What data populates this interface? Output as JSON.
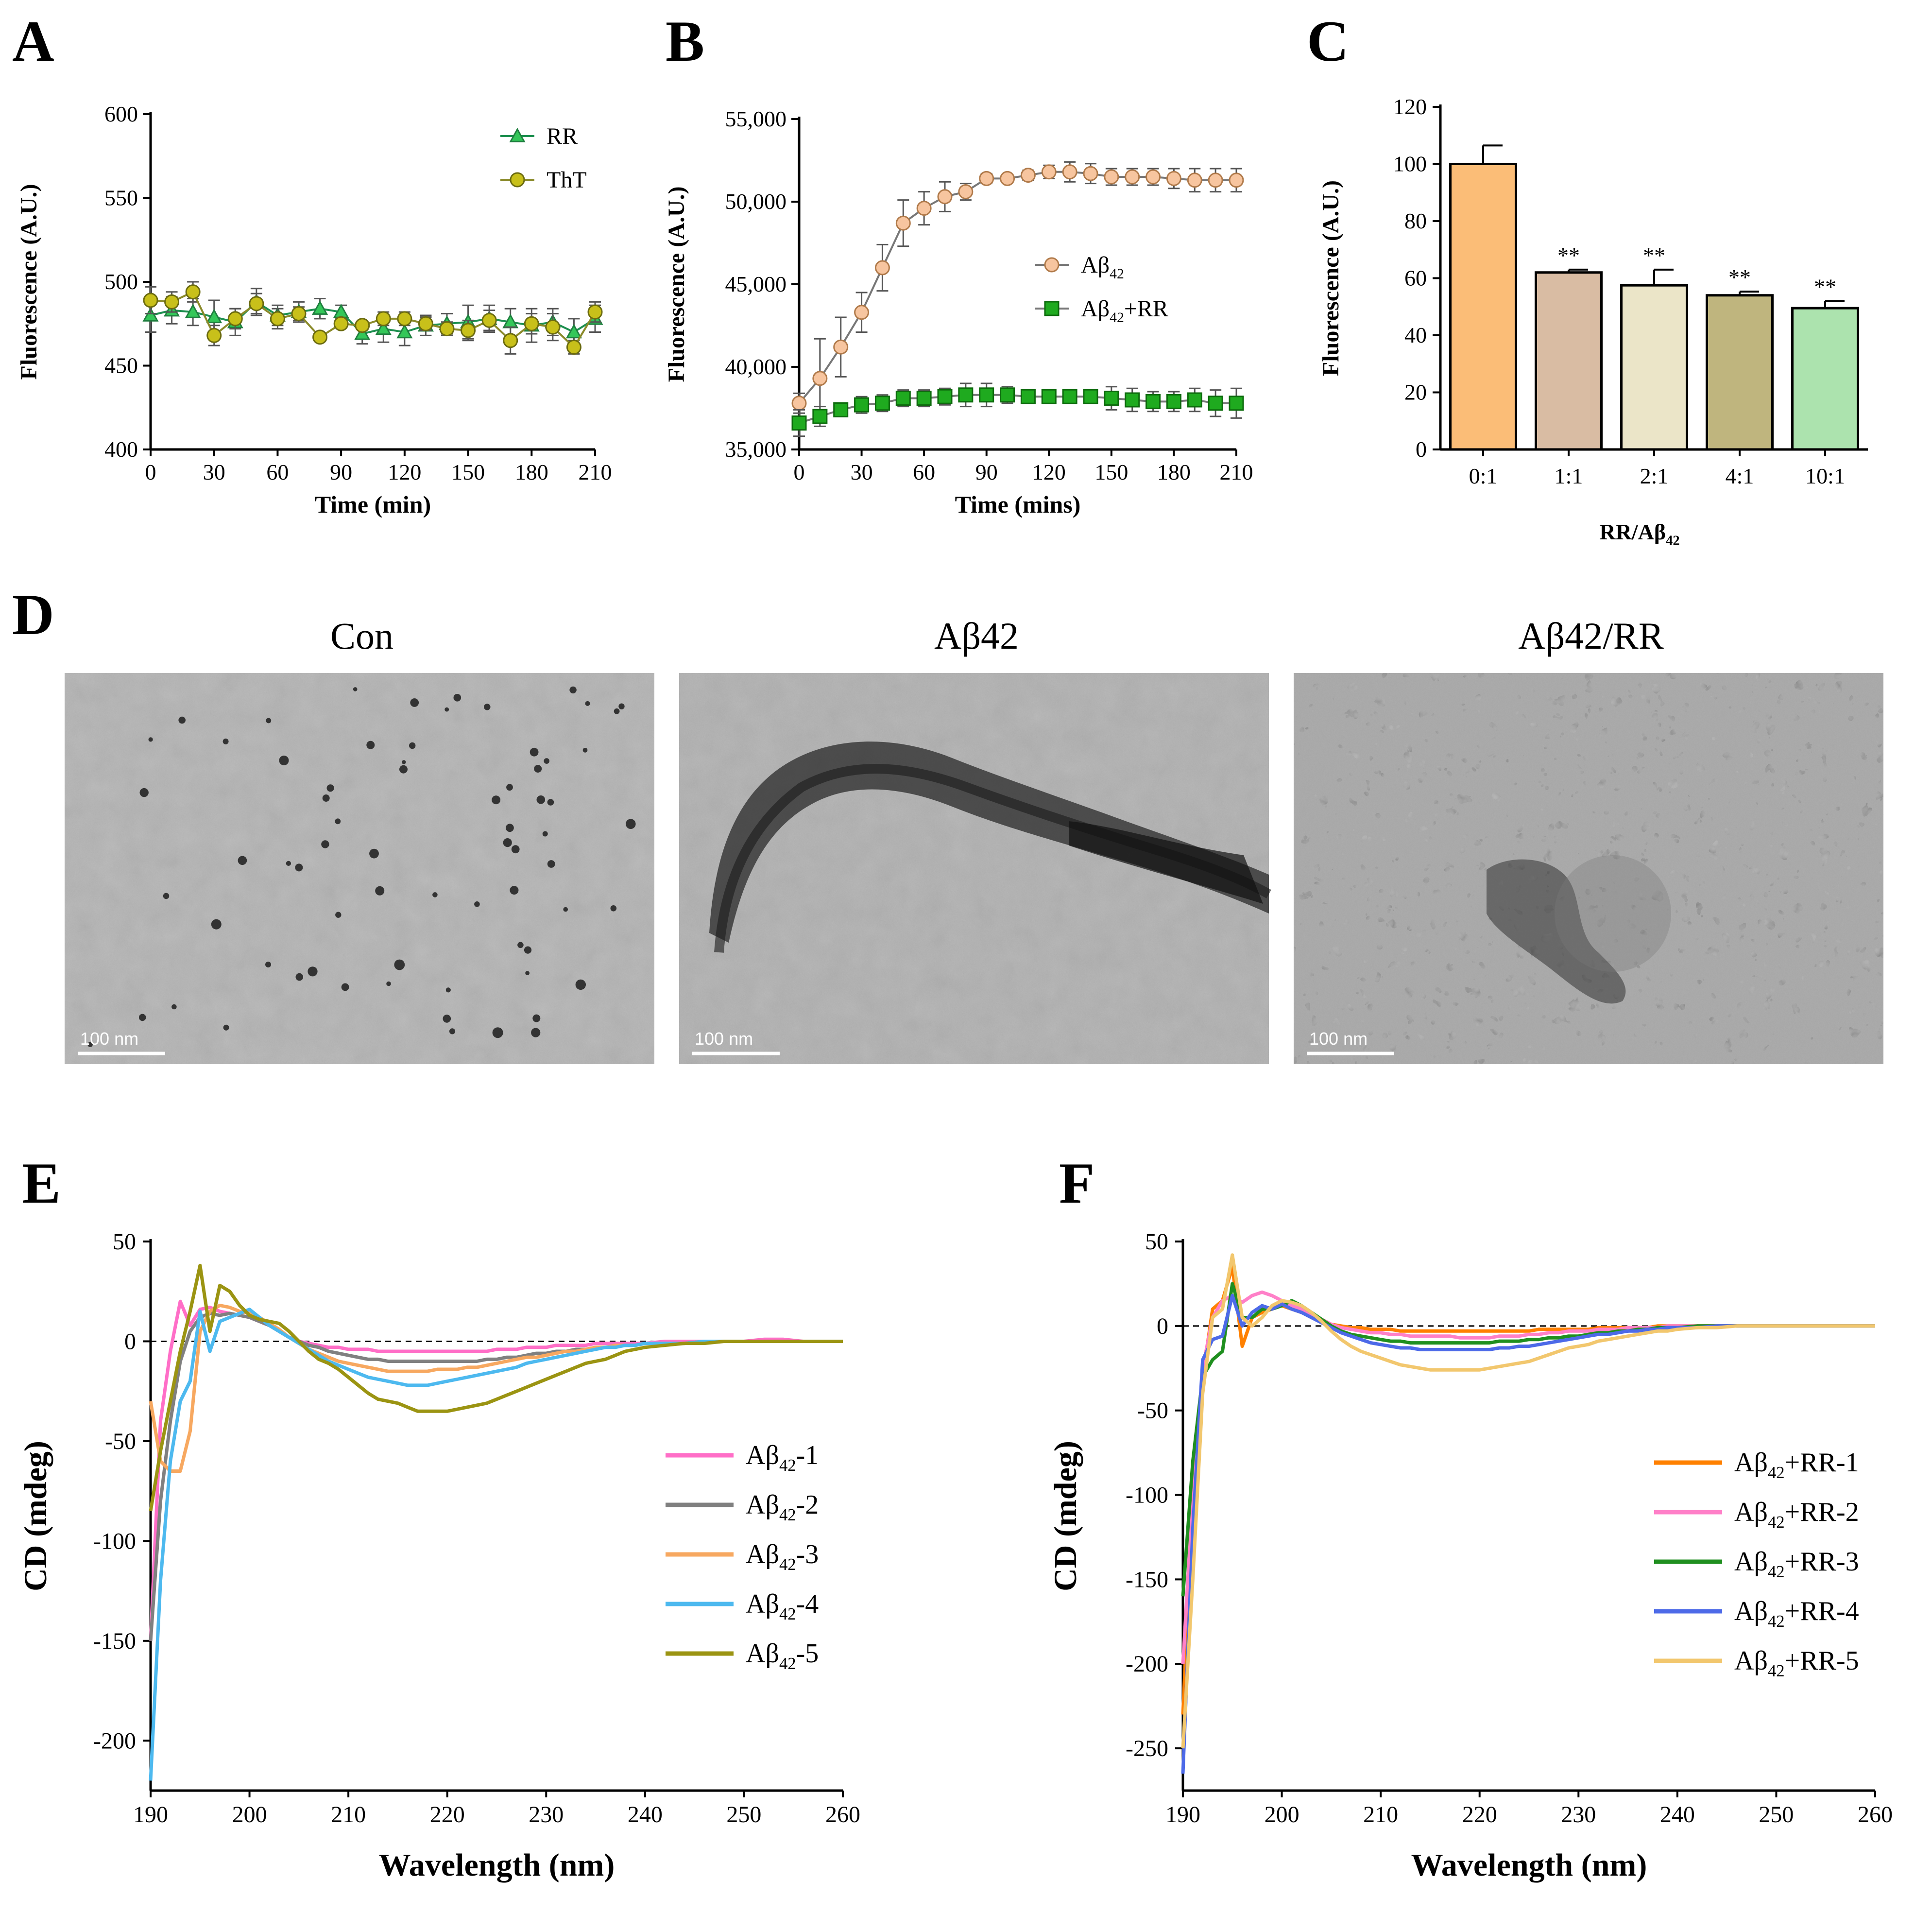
{
  "panels": {
    "A": "A",
    "B": "B",
    "C": "C",
    "D": "D",
    "E": "E",
    "F": "F"
  },
  "micrographs": [
    {
      "title": "Con",
      "scale_bar": "100 nm"
    },
    {
      "title": "Aβ42",
      "scale_bar": "100 nm"
    },
    {
      "title": "Aβ42/RR",
      "scale_bar": "100 nm"
    }
  ],
  "colors": {
    "rr_green": "#34c759",
    "tht_olive": "#c8c01a",
    "abeta_orange": "#f7c59f",
    "abetarr_green": "#1faa1f",
    "bar_0_1": "#fbbd77",
    "bar_1_1": "#d9bca3",
    "bar_2_1": "#ebe5c8",
    "bar_4_1": "#bfb57e",
    "bar_10_1": "#ace3ae",
    "cd_1": "#ff6ec7",
    "cd_2": "#808080",
    "cd_3": "#f7a860",
    "cd_4": "#4db9ef",
    "cd_5": "#9b9412",
    "rr_1": "#ff8000",
    "rr_2": "#ff80c8",
    "rr_3": "#1f8f1f",
    "rr_4": "#4d6ae8",
    "rr_5": "#f2c76e"
  },
  "chart_data": [
    {
      "panel": "A",
      "type": "line",
      "xlabel": "Time (min)",
      "ylabel": "Fluorescence (A.U.)",
      "xlim": [
        0,
        210
      ],
      "ylim": [
        400,
        600
      ],
      "xticks": [
        0,
        30,
        60,
        90,
        120,
        150,
        180,
        210
      ],
      "yticks": [
        400,
        450,
        500,
        550,
        600
      ],
      "x": [
        0,
        10,
        20,
        30,
        40,
        50,
        60,
        70,
        80,
        90,
        100,
        110,
        120,
        130,
        140,
        150,
        160,
        170,
        180,
        190,
        200,
        210
      ],
      "series": [
        {
          "name": "RR",
          "marker": "triangle",
          "values": [
            480,
            483,
            482,
            479,
            476,
            488,
            480,
            482,
            484,
            482,
            469,
            472,
            470,
            474,
            475,
            476,
            478,
            476,
            474,
            476,
            470,
            478
          ],
          "errors": [
            10,
            8,
            8,
            10,
            8,
            8,
            6,
            6,
            6,
            4,
            6,
            8,
            8,
            6,
            6,
            10,
            8,
            8,
            10,
            8,
            8,
            8
          ]
        },
        {
          "name": "ThT",
          "marker": "circle",
          "values": [
            489,
            488,
            494,
            468,
            478,
            487,
            478,
            481,
            467,
            475,
            474,
            478,
            478,
            475,
            472,
            471,
            477,
            465,
            475,
            473,
            461,
            482
          ],
          "errors": [
            8,
            6,
            6,
            6,
            6,
            6,
            6,
            4,
            2,
            2,
            2,
            4,
            4,
            4,
            4,
            6,
            6,
            8,
            6,
            8,
            4,
            6
          ]
        }
      ]
    },
    {
      "panel": "B",
      "type": "line",
      "xlabel": "Time (mins)",
      "ylabel": "Fluorescence (A.U.)",
      "xlim": [
        0,
        210
      ],
      "ylim": [
        35000,
        55000
      ],
      "xticks": [
        0,
        30,
        60,
        90,
        120,
        150,
        180,
        210
      ],
      "yticks": [
        35000,
        40000,
        45000,
        50000,
        55000
      ],
      "ytick_labels": [
        "35,000",
        "40,000",
        "45,000",
        "50,000",
        "55,000"
      ],
      "x": [
        0,
        10,
        20,
        30,
        40,
        50,
        60,
        70,
        80,
        90,
        100,
        110,
        120,
        130,
        140,
        150,
        160,
        170,
        180,
        190,
        200,
        210
      ],
      "series": [
        {
          "name": "Aβ42",
          "marker": "circle",
          "values": [
            37800,
            39300,
            41200,
            43300,
            46000,
            48700,
            49600,
            50300,
            50600,
            51400,
            51400,
            51600,
            51800,
            51800,
            51700,
            51500,
            51500,
            51500,
            51400,
            51300,
            51300,
            51300
          ],
          "errors": [
            600,
            2400,
            1800,
            1200,
            1400,
            1400,
            1000,
            900,
            500,
            300,
            200,
            300,
            400,
            600,
            600,
            500,
            500,
            500,
            600,
            700,
            700,
            700
          ]
        },
        {
          "name": "Aβ42+RR",
          "marker": "square",
          "values": [
            36600,
            37000,
            37400,
            37700,
            37800,
            38100,
            38100,
            38200,
            38300,
            38300,
            38300,
            38200,
            38200,
            38200,
            38200,
            38100,
            38000,
            37900,
            37900,
            38000,
            37800,
            37800
          ],
          "errors": [
            800,
            600,
            400,
            500,
            500,
            500,
            500,
            500,
            700,
            700,
            500,
            400,
            300,
            300,
            300,
            700,
            700,
            600,
            600,
            700,
            800,
            900
          ]
        }
      ]
    },
    {
      "panel": "C",
      "type": "bar",
      "xlabel": "RR/Aβ42",
      "ylabel": "Fluorescence (A.U.)",
      "ylim": [
        0,
        120
      ],
      "yticks": [
        0,
        20,
        40,
        60,
        80,
        100,
        120
      ],
      "categories": [
        "0:1",
        "1:1",
        "2:1",
        "4:1",
        "10:1"
      ],
      "values": [
        100,
        62,
        57.5,
        54,
        49.5
      ],
      "errors": [
        6.5,
        1,
        5.5,
        1.3,
        2.5
      ],
      "significance": [
        "",
        "**",
        "**",
        "**",
        "**"
      ]
    },
    {
      "panel": "E",
      "type": "line",
      "xlabel": "Wavelength (nm)",
      "ylabel": "CD (mdeg)",
      "xlim": [
        190,
        260
      ],
      "ylim": [
        -225,
        50
      ],
      "xticks": [
        190,
        200,
        210,
        220,
        230,
        240,
        250,
        260
      ],
      "yticks": [
        -200,
        -150,
        -100,
        -50,
        0,
        50
      ],
      "x": [
        190,
        191,
        192,
        193,
        194,
        195,
        196,
        197,
        198,
        199,
        200,
        201,
        202,
        203,
        204,
        205,
        206,
        207,
        208,
        209,
        210,
        211,
        212,
        213,
        214,
        215,
        216,
        217,
        218,
        219,
        220,
        221,
        222,
        223,
        224,
        225,
        226,
        227,
        228,
        229,
        230,
        231,
        232,
        233,
        234,
        235,
        236,
        237,
        238,
        239,
        240,
        242,
        244,
        246,
        248,
        250,
        252,
        254,
        256,
        258,
        260
      ],
      "series": [
        {
          "name": "Aβ42-1",
          "values": [
            -150,
            -40,
            -5,
            20,
            8,
            16,
            17,
            15,
            14,
            13,
            12,
            10,
            8,
            5,
            2,
            0,
            -1,
            -2,
            -3,
            -3,
            -4,
            -4,
            -4,
            -5,
            -5,
            -5,
            -5,
            -5,
            -5,
            -5,
            -5,
            -5,
            -5,
            -5,
            -5,
            -4,
            -4,
            -4,
            -3,
            -3,
            -3,
            -2,
            -2,
            -2,
            -2,
            -1,
            -1,
            -1,
            -1,
            -1,
            -1,
            0,
            0,
            0,
            0,
            0,
            1,
            1,
            0,
            0,
            0
          ]
        },
        {
          "name": "Aβ42-2",
          "values": [
            -150,
            -80,
            -40,
            -10,
            5,
            12,
            14,
            13,
            14,
            13,
            12,
            10,
            8,
            5,
            2,
            0,
            -2,
            -3,
            -5,
            -6,
            -7,
            -8,
            -9,
            -9,
            -10,
            -10,
            -10,
            -10,
            -10,
            -10,
            -10,
            -10,
            -10,
            -10,
            -9,
            -9,
            -8,
            -8,
            -7,
            -6,
            -6,
            -5,
            -5,
            -4,
            -4,
            -3,
            -3,
            -2,
            -2,
            -2,
            -1,
            -1,
            -1,
            0,
            0,
            0,
            0,
            0,
            0,
            0,
            0
          ]
        },
        {
          "name": "Aβ42-3",
          "values": [
            -30,
            -60,
            -65,
            -65,
            -45,
            5,
            15,
            18,
            17,
            15,
            14,
            12,
            9,
            6,
            2,
            -1,
            -4,
            -6,
            -8,
            -10,
            -11,
            -12,
            -13,
            -14,
            -15,
            -15,
            -15,
            -15,
            -15,
            -14,
            -14,
            -14,
            -13,
            -13,
            -12,
            -11,
            -10,
            -9,
            -8,
            -8,
            -7,
            -6,
            -5,
            -5,
            -4,
            -3,
            -3,
            -2,
            -2,
            -2,
            -1,
            -1,
            -1,
            0,
            0,
            0,
            0,
            0,
            0,
            0,
            0
          ]
        },
        {
          "name": "Aβ42-4",
          "values": [
            -220,
            -120,
            -60,
            -30,
            -20,
            15,
            -5,
            10,
            12,
            14,
            16,
            12,
            8,
            5,
            2,
            -1,
            -4,
            -7,
            -10,
            -12,
            -14,
            -16,
            -18,
            -19,
            -20,
            -21,
            -22,
            -22,
            -22,
            -21,
            -20,
            -19,
            -18,
            -17,
            -16,
            -15,
            -14,
            -13,
            -11,
            -10,
            -9,
            -8,
            -7,
            -6,
            -5,
            -4,
            -3,
            -3,
            -2,
            -2,
            -1,
            -1,
            -1,
            0,
            0,
            0,
            0,
            0,
            0,
            0,
            0
          ]
        },
        {
          "name": "Aβ42-5",
          "values": [
            -85,
            -55,
            -30,
            -5,
            15,
            38,
            5,
            28,
            25,
            18,
            13,
            11,
            10,
            9,
            5,
            0,
            -5,
            -9,
            -11,
            -14,
            -18,
            -22,
            -26,
            -29,
            -30,
            -31,
            -33,
            -35,
            -35,
            -35,
            -35,
            -34,
            -33,
            -32,
            -31,
            -29,
            -27,
            -25,
            -23,
            -21,
            -19,
            -17,
            -15,
            -13,
            -11,
            -10,
            -9,
            -7,
            -5,
            -4,
            -3,
            -2,
            -1,
            -1,
            0,
            0,
            0,
            0,
            0,
            0,
            0
          ]
        }
      ]
    },
    {
      "panel": "F",
      "type": "line",
      "xlabel": "Wavelength (nm)",
      "ylabel": "CD (mdeg)",
      "xlim": [
        190,
        260
      ],
      "ylim": [
        -275,
        50
      ],
      "xticks": [
        190,
        200,
        210,
        220,
        230,
        240,
        250,
        260
      ],
      "yticks": [
        -250,
        -200,
        -150,
        -100,
        -50,
        0,
        50
      ],
      "x": [
        190,
        191,
        192,
        193,
        194,
        195,
        196,
        197,
        198,
        199,
        200,
        201,
        202,
        203,
        204,
        205,
        206,
        207,
        208,
        209,
        210,
        211,
        212,
        213,
        214,
        215,
        216,
        217,
        218,
        219,
        220,
        221,
        222,
        223,
        224,
        225,
        226,
        227,
        228,
        229,
        230,
        231,
        232,
        233,
        234,
        235,
        236,
        237,
        238,
        239,
        240,
        242,
        244,
        246,
        248,
        250,
        252,
        254,
        256,
        258,
        260
      ],
      "series": [
        {
          "name": "Aβ42+RR-1",
          "values": [
            -230,
            -100,
            -30,
            10,
            15,
            35,
            -12,
            5,
            8,
            10,
            12,
            10,
            8,
            6,
            3,
            1,
            0,
            -1,
            -1,
            -2,
            -2,
            -2,
            -3,
            -3,
            -3,
            -3,
            -3,
            -3,
            -3,
            -3,
            -3,
            -3,
            -3,
            -3,
            -3,
            -3,
            -2,
            -2,
            -2,
            -2,
            -2,
            -2,
            -1,
            -1,
            -1,
            -1,
            -1,
            -1,
            0,
            0,
            0,
            0,
            0,
            0,
            0,
            0,
            0,
            0,
            0,
            0,
            0
          ]
        },
        {
          "name": "Aβ42+RR-2",
          "values": [
            -200,
            -100,
            -25,
            5,
            15,
            18,
            14,
            18,
            20,
            18,
            15,
            12,
            10,
            7,
            4,
            1,
            -1,
            -2,
            -3,
            -4,
            -4,
            -5,
            -5,
            -6,
            -6,
            -6,
            -6,
            -6,
            -7,
            -7,
            -7,
            -7,
            -6,
            -6,
            -6,
            -5,
            -5,
            -4,
            -4,
            -3,
            -3,
            -3,
            -2,
            -2,
            -2,
            -1,
            -1,
            -1,
            -1,
            0,
            0,
            0,
            0,
            0,
            0,
            0,
            0,
            0,
            0,
            0,
            0
          ]
        },
        {
          "name": "Aβ42+RR-3",
          "values": [
            -160,
            -80,
            -30,
            -20,
            -15,
            25,
            5,
            5,
            10,
            10,
            12,
            15,
            12,
            8,
            4,
            0,
            -3,
            -5,
            -6,
            -7,
            -8,
            -9,
            -9,
            -10,
            -10,
            -10,
            -10,
            -10,
            -10,
            -10,
            -10,
            -10,
            -9,
            -9,
            -9,
            -8,
            -8,
            -7,
            -7,
            -6,
            -6,
            -5,
            -4,
            -4,
            -3,
            -3,
            -2,
            -2,
            -1,
            -1,
            -1,
            0,
            0,
            0,
            0,
            0,
            0,
            0,
            0,
            0,
            0
          ]
        },
        {
          "name": "Aβ42+RR-4",
          "values": [
            -265,
            -120,
            -20,
            -8,
            -6,
            18,
            0,
            8,
            12,
            10,
            13,
            10,
            8,
            5,
            2,
            -1,
            -4,
            -6,
            -8,
            -10,
            -11,
            -12,
            -13,
            -13,
            -14,
            -14,
            -14,
            -14,
            -14,
            -14,
            -14,
            -14,
            -13,
            -13,
            -12,
            -12,
            -11,
            -10,
            -9,
            -8,
            -7,
            -6,
            -5,
            -5,
            -4,
            -3,
            -3,
            -2,
            -2,
            -1,
            -1,
            -1,
            0,
            0,
            0,
            0,
            0,
            0,
            0,
            0,
            0
          ]
        },
        {
          "name": "Aβ42+RR-5",
          "values": [
            -250,
            -150,
            -40,
            5,
            10,
            42,
            5,
            0,
            5,
            12,
            15,
            14,
            12,
            8,
            3,
            -3,
            -8,
            -12,
            -15,
            -17,
            -19,
            -21,
            -23,
            -24,
            -25,
            -26,
            -26,
            -26,
            -26,
            -26,
            -26,
            -25,
            -24,
            -23,
            -22,
            -21,
            -19,
            -17,
            -15,
            -13,
            -12,
            -11,
            -9,
            -8,
            -7,
            -6,
            -5,
            -4,
            -3,
            -3,
            -2,
            -1,
            -1,
            0,
            0,
            0,
            0,
            0,
            0,
            0,
            0
          ]
        }
      ]
    }
  ]
}
